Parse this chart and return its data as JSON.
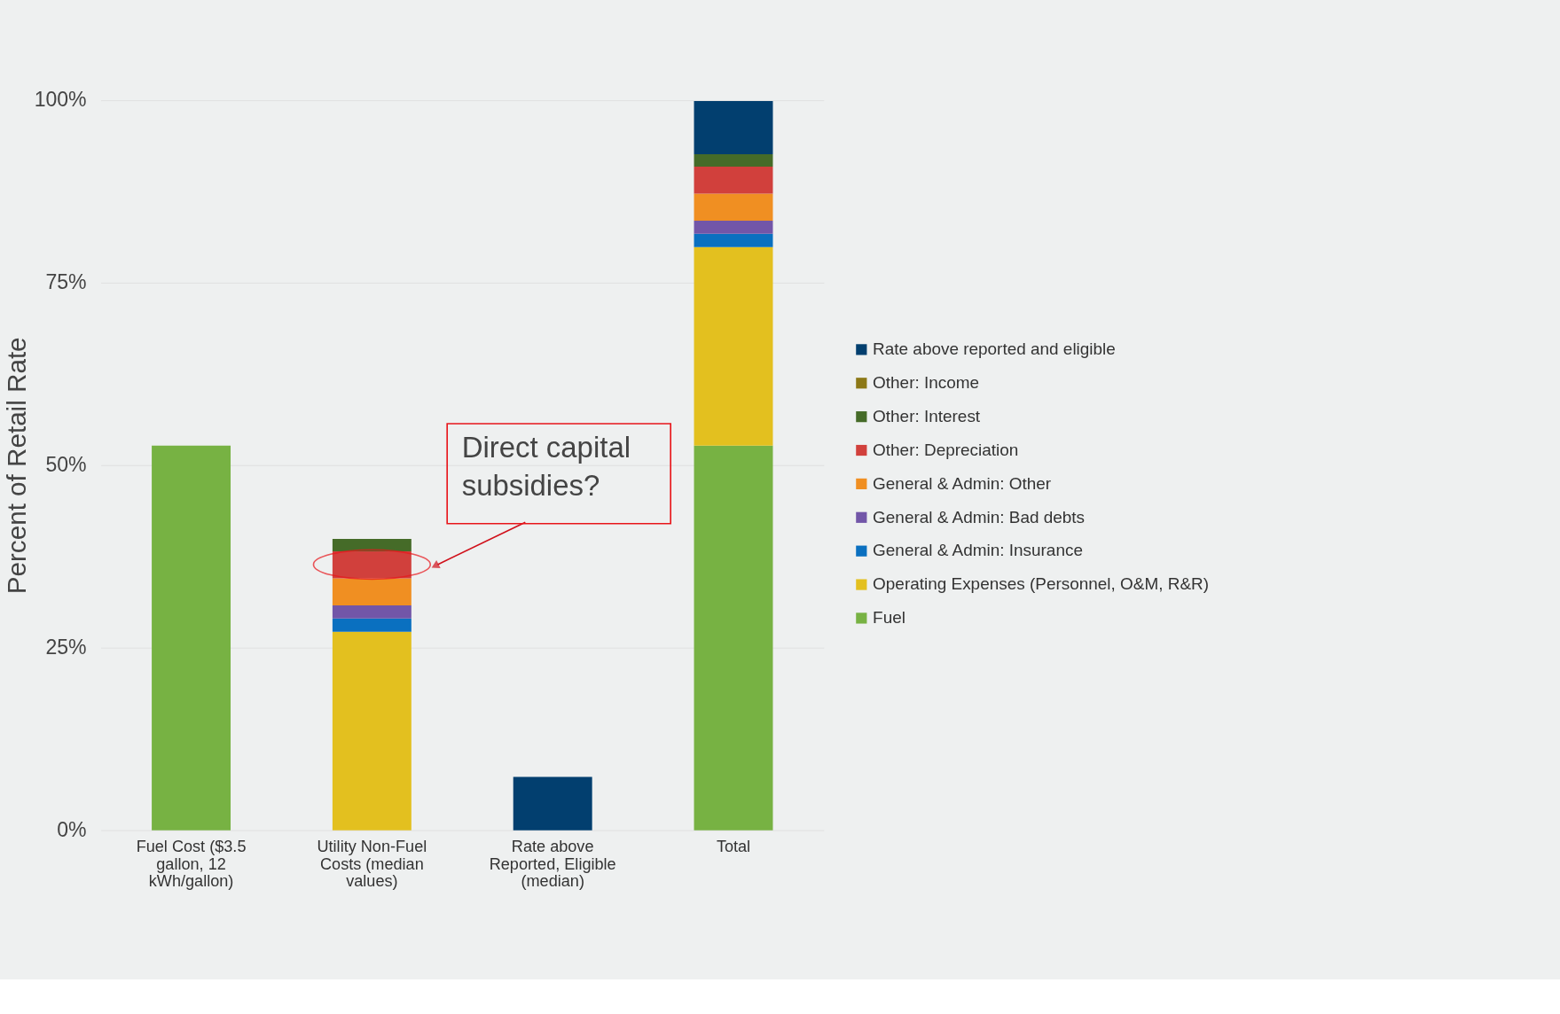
{
  "chart_data": {
    "type": "bar",
    "stacked": true,
    "ylabel": "Percent of Retail Rate",
    "categories": [
      "Fuel Cost ($3.5 gallon, 12 kWh/gallon)",
      "Utility Non-Fuel Costs (median values)",
      "Rate above Reported, Eligible (median)",
      "Total"
    ],
    "series": [
      {
        "name": "Fuel",
        "color": "#77b243",
        "values": [
          52.7,
          null,
          null,
          52.7
        ]
      },
      {
        "name": "Operating Expenses (Personnel, O&M, R&R)",
        "color": "#e3c01f",
        "values": [
          null,
          27.2,
          null,
          27.2
        ]
      },
      {
        "name": "General & Admin: Insurance",
        "color": "#0a70c0",
        "values": [
          null,
          1.8,
          null,
          1.8
        ]
      },
      {
        "name": "General & Admin: Bad debts",
        "color": "#7256a8",
        "values": [
          null,
          1.8,
          null,
          1.8
        ]
      },
      {
        "name": "General & Admin: Other",
        "color": "#f08f22",
        "values": [
          null,
          3.7,
          null,
          3.7
        ]
      },
      {
        "name": "Other: Depreciation",
        "color": "#d1403c",
        "values": [
          null,
          3.7,
          null,
          3.7
        ]
      },
      {
        "name": "Other: Interest",
        "color": "#456b28",
        "values": [
          null,
          1.7,
          null,
          1.7
        ]
      },
      {
        "name": "Other: Income",
        "color": "#8c7816",
        "values": [
          null,
          null,
          null,
          null
        ]
      },
      {
        "name": "Rate above reported and eligible",
        "color": "#023f6f",
        "values": [
          null,
          null,
          7.3,
          7.3
        ]
      }
    ],
    "ylim": [
      0,
      100
    ],
    "yticks": [
      {
        "value": 0,
        "label": "0%"
      },
      {
        "value": 25,
        "label": "25%"
      },
      {
        "value": 50,
        "label": "50%"
      },
      {
        "value": 75,
        "label": "75%"
      },
      {
        "value": 100,
        "label": "100%"
      }
    ],
    "grid": "y",
    "legend": "right",
    "annotations": [
      "Direct capital subsidies?"
    ]
  }
}
